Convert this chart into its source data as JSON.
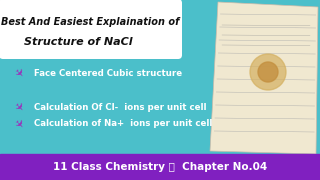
{
  "title_line1": "Best And Easiest Explaination of",
  "title_line2": "Structure of NaCl",
  "bullet1": "  Face Centered Cubic structure",
  "bullet2": "  Calculation Of Cl-  ions per unit cell",
  "bullet3": "  Calculation of Na+  ions per unit cell",
  "footer": "11 Class Chemistry 🍲  Chapter No.04",
  "bg_color": "#4bbfca",
  "title_bg": "#ffffff",
  "bullet_color": "#ffffff",
  "footer_bg": "#8020c0",
  "footer_text_color": "#ffffff",
  "arrow_color": "#9933bb",
  "title_text_color": "#111111",
  "footer_purple_text": "#8020c0",
  "notebook_bg": "#f0e8d0",
  "notebook_line": "#bbbbbb"
}
